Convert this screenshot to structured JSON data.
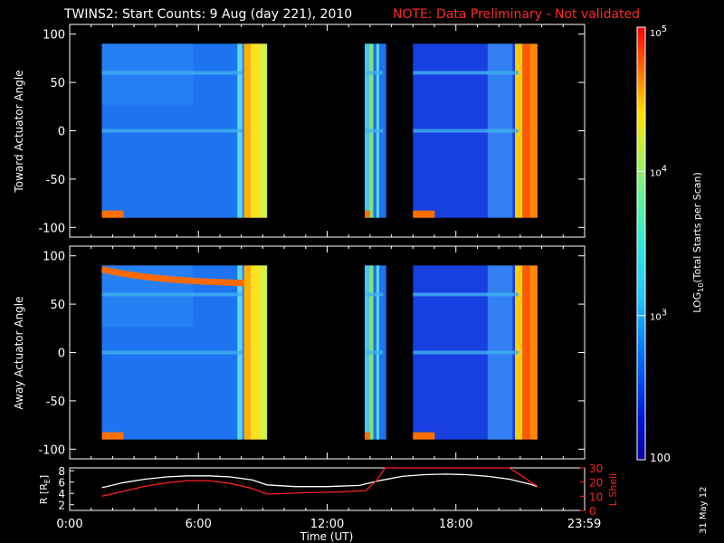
{
  "header": {
    "title": "TWINS2: Start Counts:  9 Aug (day 221), 2010",
    "note": "NOTE: Data Preliminary - Not validated"
  },
  "datestamp": "31 May 12",
  "colors": {
    "background": "#000000",
    "note": "#ff2a2a",
    "r_line": "#ffffff",
    "l_shell_line": "#ff2020",
    "no_data": "#000000"
  },
  "chart_data": [
    {
      "type": "heatmap",
      "panel": "toward",
      "ylabel": "Toward Actuator Angle",
      "xlabel": "",
      "xlim": [
        0,
        24
      ],
      "ylim": [
        -110,
        110
      ],
      "yticks": [
        -100,
        -50,
        0,
        50,
        100
      ],
      "data_intervals_hours": [
        [
          1.5,
          9.2
        ],
        [
          13.75,
          14.75
        ],
        [
          16.0,
          21.8
        ]
      ],
      "y_extent": [
        -90,
        90
      ],
      "colorbar_ref": "counts"
    },
    {
      "type": "heatmap",
      "panel": "away",
      "ylabel": "Away Actuator Angle",
      "xlabel": "",
      "xlim": [
        0,
        24
      ],
      "ylim": [
        -110,
        110
      ],
      "yticks": [
        -100,
        -50,
        0,
        50,
        100
      ],
      "data_intervals_hours": [
        [
          1.5,
          9.2
        ],
        [
          13.75,
          14.75
        ],
        [
          16.0,
          21.8
        ]
      ],
      "y_extent": [
        -90,
        90
      ],
      "colorbar_ref": "counts"
    },
    {
      "type": "line",
      "panel": "orbit",
      "xlabel": "Time (UT)",
      "xlim": [
        0,
        24
      ],
      "xtick_labels": [
        "0:00",
        "6:00",
        "12:00",
        "18:00",
        "23:59"
      ],
      "xtick_hours": [
        0,
        6,
        12,
        18,
        23.983
      ],
      "y_left": {
        "label": "R [R",
        "label_sub": "E",
        "label_end": "]",
        "ylim": [
          1,
          8.5
        ],
        "ticks": [
          2,
          4,
          6,
          8
        ]
      },
      "y_right": {
        "label": "L Shell",
        "ylim": [
          0,
          30
        ],
        "ticks": [
          0,
          10,
          20,
          30
        ]
      },
      "series": [
        {
          "name": "R [RE]",
          "axis": "left",
          "x": [
            1.5,
            2.5,
            3.5,
            4.5,
            5.5,
            6.5,
            7.5,
            8.5,
            9.2,
            10.5,
            12.0,
            13.5,
            14.5,
            15.5,
            16.5,
            17.5,
            18.5,
            19.5,
            20.5,
            21.5,
            21.8
          ],
          "y": [
            5.0,
            5.9,
            6.5,
            6.9,
            7.1,
            7.1,
            6.9,
            6.4,
            5.5,
            5.2,
            5.2,
            5.4,
            6.3,
            7.0,
            7.3,
            7.4,
            7.3,
            7.0,
            6.5,
            5.6,
            5.2
          ]
        },
        {
          "name": "L Shell",
          "axis": "right",
          "x": [
            1.5,
            2.5,
            3.5,
            4.5,
            5.5,
            6.5,
            7.5,
            8.5,
            9.2,
            11.0,
            12.5,
            13.8,
            14.3,
            14.7,
            20.5,
            21.8
          ],
          "y": [
            10.0,
            13.5,
            17.0,
            19.5,
            21.0,
            21.0,
            19.0,
            15.5,
            11.5,
            12.5,
            13.0,
            14.0,
            21.0,
            32.0,
            32.0,
            17.0
          ]
        }
      ]
    },
    {
      "type": "colorbar",
      "label": "LOG10(Total Starts per Scan)",
      "label_main": "LOG",
      "label_sub": "10",
      "label_rest": "(Total Starts per Scan)",
      "scale": "log",
      "range": [
        100,
        100000
      ],
      "tick_labels": [
        {
          "value": 100000,
          "base": "10",
          "exp": "5"
        },
        {
          "value": 10000,
          "base": "10",
          "exp": "4"
        },
        {
          "value": 1000,
          "base": "10",
          "exp": "3"
        },
        {
          "value": 100,
          "base": "100",
          "exp": ""
        }
      ]
    }
  ]
}
